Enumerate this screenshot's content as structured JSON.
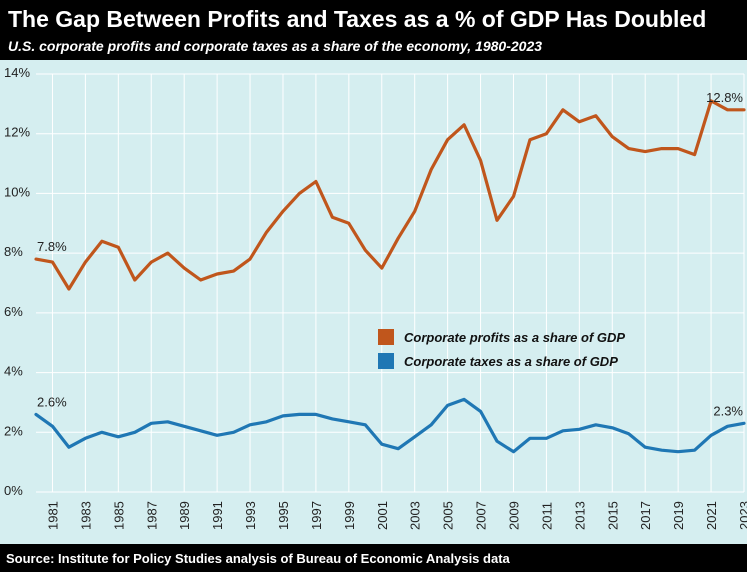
{
  "header": {
    "title": "The Gap Between Profits and Taxes as a % of GDP Has Doubled",
    "subtitle": "U.S. corporate profits and corporate taxes as a share of the economy, 1980-2023"
  },
  "footer": {
    "source": "Source: Institute for Policy Studies analysis of Bureau of Economic Analysis data"
  },
  "colors": {
    "background": "#d5eef0",
    "profits": "#c0561c",
    "taxes": "#1f77b4",
    "bars": "#000000"
  },
  "chart_data": {
    "type": "line",
    "x": [
      1980,
      1981,
      1982,
      1983,
      1984,
      1985,
      1986,
      1987,
      1988,
      1989,
      1990,
      1991,
      1992,
      1993,
      1994,
      1995,
      1996,
      1997,
      1998,
      1999,
      2000,
      2001,
      2002,
      2003,
      2004,
      2005,
      2006,
      2007,
      2008,
      2009,
      2010,
      2011,
      2012,
      2013,
      2014,
      2015,
      2016,
      2017,
      2018,
      2019,
      2020,
      2021,
      2022,
      2023
    ],
    "xticks": [
      "1981",
      "1983",
      "1985",
      "1987",
      "1989",
      "1991",
      "1993",
      "1995",
      "1997",
      "1999",
      "2001",
      "2003",
      "2005",
      "2007",
      "2009",
      "2011",
      "2013",
      "2015",
      "2017",
      "2019",
      "2021",
      "2023"
    ],
    "yticks": [
      "0%",
      "2%",
      "4%",
      "6%",
      "8%",
      "10%",
      "12%",
      "14%"
    ],
    "ylim": [
      0,
      14
    ],
    "grid": true,
    "legend_position": "center-right",
    "series": [
      {
        "name": "Corporate profits as a share of GDP",
        "color": "#c0561c",
        "values": [
          7.8,
          7.7,
          6.8,
          7.7,
          8.4,
          8.2,
          7.1,
          7.7,
          8.0,
          7.5,
          7.1,
          7.3,
          7.4,
          7.8,
          8.7,
          9.4,
          10.0,
          10.4,
          9.2,
          9.0,
          8.1,
          7.5,
          8.5,
          9.4,
          10.8,
          11.8,
          12.3,
          11.1,
          9.1,
          9.9,
          11.8,
          12.0,
          12.8,
          12.4,
          12.6,
          11.9,
          11.5,
          11.4,
          11.5,
          11.5,
          11.3,
          13.1,
          12.8,
          12.8
        ],
        "start_label": "7.8%",
        "end_label": "12.8%"
      },
      {
        "name": "Corporate taxes as a share of GDP",
        "color": "#1f77b4",
        "values": [
          2.6,
          2.2,
          1.5,
          1.8,
          2.0,
          1.85,
          2.0,
          2.3,
          2.35,
          2.2,
          2.05,
          1.9,
          2.0,
          2.25,
          2.35,
          2.55,
          2.6,
          2.6,
          2.45,
          2.35,
          2.25,
          1.6,
          1.45,
          1.85,
          2.25,
          2.9,
          3.1,
          2.7,
          1.7,
          1.35,
          1.8,
          1.8,
          2.05,
          2.1,
          2.25,
          2.15,
          1.95,
          1.5,
          1.4,
          1.35,
          1.4,
          1.9,
          2.2,
          2.3
        ],
        "start_label": "2.6%",
        "end_label": "2.3%"
      }
    ]
  }
}
